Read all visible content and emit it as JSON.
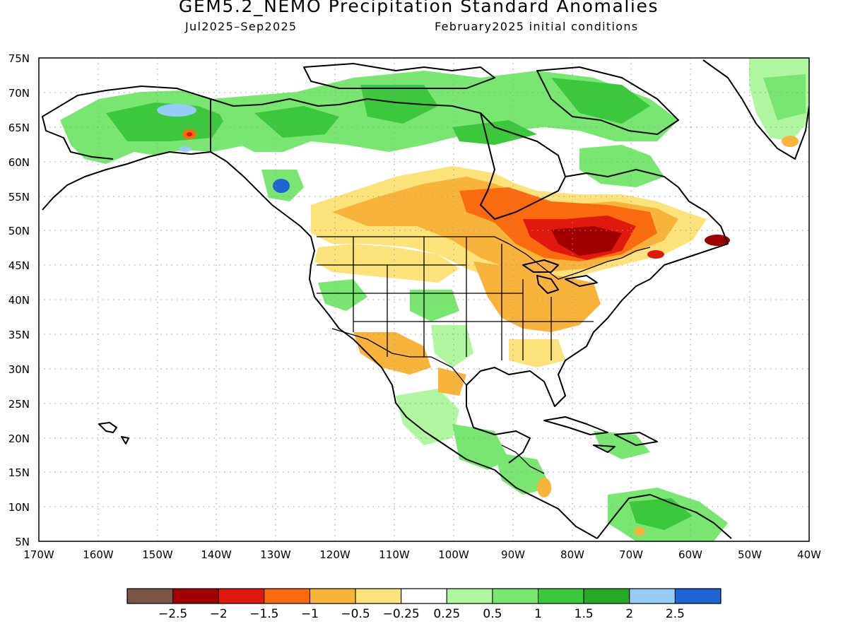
{
  "title": "GEM5.2_NEMO Precipitation Standard Anomalies",
  "subtitle_left": "Jul2025–Sep2025",
  "subtitle_right": "February2025 initial conditions",
  "map": {
    "region": "North America",
    "lon_range": [
      -170,
      -40
    ],
    "lat_range": [
      5,
      75
    ],
    "lat_labels": [
      "75N",
      "70N",
      "65N",
      "60N",
      "55N",
      "50N",
      "45N",
      "40N",
      "35N",
      "30N",
      "25N",
      "20N",
      "15N",
      "10N",
      "5N"
    ],
    "lon_labels": [
      "170W",
      "160W",
      "150W",
      "140W",
      "130W",
      "120W",
      "110W",
      "100W",
      "90W",
      "80W",
      "70W",
      "60W",
      "50W",
      "40W"
    ],
    "gridlines": "dotted"
  },
  "colorbar": {
    "colors": [
      "#7a5545",
      "#a00000",
      "#e0190f",
      "#fa6a0f",
      "#f8b33a",
      "#fce27a",
      "#ffffff",
      "#b0f5a0",
      "#78e670",
      "#3cc83c",
      "#28a828",
      "#96ccf5",
      "#1e64d2"
    ],
    "labels": [
      "−2.5",
      "−2",
      "−1.5",
      "−1",
      "−0.5",
      "−0.25",
      "0.25",
      "0.5",
      "1",
      "1.5",
      "2",
      "2.5"
    ]
  }
}
